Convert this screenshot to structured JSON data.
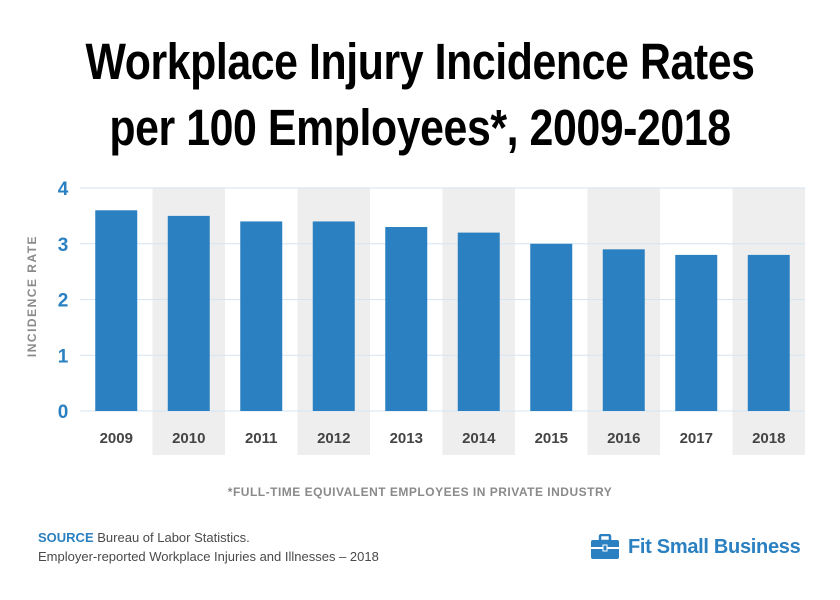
{
  "title_line1": "Workplace Injury Incidence Rates",
  "title_line2": "per 100 Employees*, 2009-2018",
  "footnote": "*FULL-TIME EQUIVALENT EMPLOYEES IN PRIVATE INDUSTRY",
  "source": {
    "key": "SOURCE",
    "line1": "Bureau of Labor Statistics.",
    "line2": "Employer-reported Workplace Injuries and Illnesses – 2018"
  },
  "brand": {
    "name": "Fit Small Business",
    "icon": "briefcase-icon"
  },
  "colors": {
    "bar": "#2a80c0",
    "axis_tick": "#2a80c0",
    "alt_band": "#eeeeee",
    "grid": "#d4e6f2",
    "brand": "#2a80c0"
  },
  "chart_data": {
    "type": "bar",
    "title": "Workplace Injury Incidence Rates per 100 Employees*, 2009-2018",
    "xlabel": "",
    "ylabel": "INCIDENCE RATE",
    "categories": [
      "2009",
      "2010",
      "2011",
      "2012",
      "2013",
      "2014",
      "2015",
      "2016",
      "2017",
      "2018"
    ],
    "values": [
      3.6,
      3.5,
      3.4,
      3.4,
      3.3,
      3.2,
      3.0,
      2.9,
      2.8,
      2.8
    ],
    "ylim": [
      0,
      4
    ],
    "yticks": [
      "0",
      "1",
      "2",
      "3",
      "4"
    ],
    "grid": true,
    "legend": "none"
  }
}
